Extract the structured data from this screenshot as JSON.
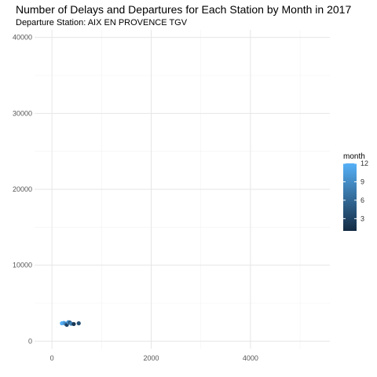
{
  "chart_data": {
    "type": "scatter",
    "title": "Number of Delays and Departures for Each Station by Month in 2017",
    "subtitle": "Departure Station: AIX EN PROVENCE TGV",
    "xlabel": "",
    "ylabel": "",
    "xlim": [
      -350,
      5600
    ],
    "ylim": [
      -1000,
      41000
    ],
    "x_ticks": [
      0,
      2000,
      4000
    ],
    "y_ticks": [
      0,
      10000,
      20000,
      30000,
      40000
    ],
    "grid": true,
    "legend": {
      "title": "month",
      "position": "right",
      "range": [
        1,
        12
      ],
      "ticks": [
        3,
        6,
        9,
        12
      ],
      "colors": [
        "#132b43",
        "#56b1f7"
      ]
    },
    "points": [
      {
        "x": 200,
        "y": 2350,
        "month": 12
      },
      {
        "x": 240,
        "y": 2400,
        "month": 11
      },
      {
        "x": 270,
        "y": 2300,
        "month": 9
      },
      {
        "x": 300,
        "y": 2150,
        "month": 3
      },
      {
        "x": 330,
        "y": 2500,
        "month": 10
      },
      {
        "x": 360,
        "y": 2450,
        "month": 5
      },
      {
        "x": 390,
        "y": 2300,
        "month": 8
      },
      {
        "x": 440,
        "y": 2250,
        "month": 2
      },
      {
        "x": 540,
        "y": 2350,
        "month": 4
      }
    ]
  }
}
